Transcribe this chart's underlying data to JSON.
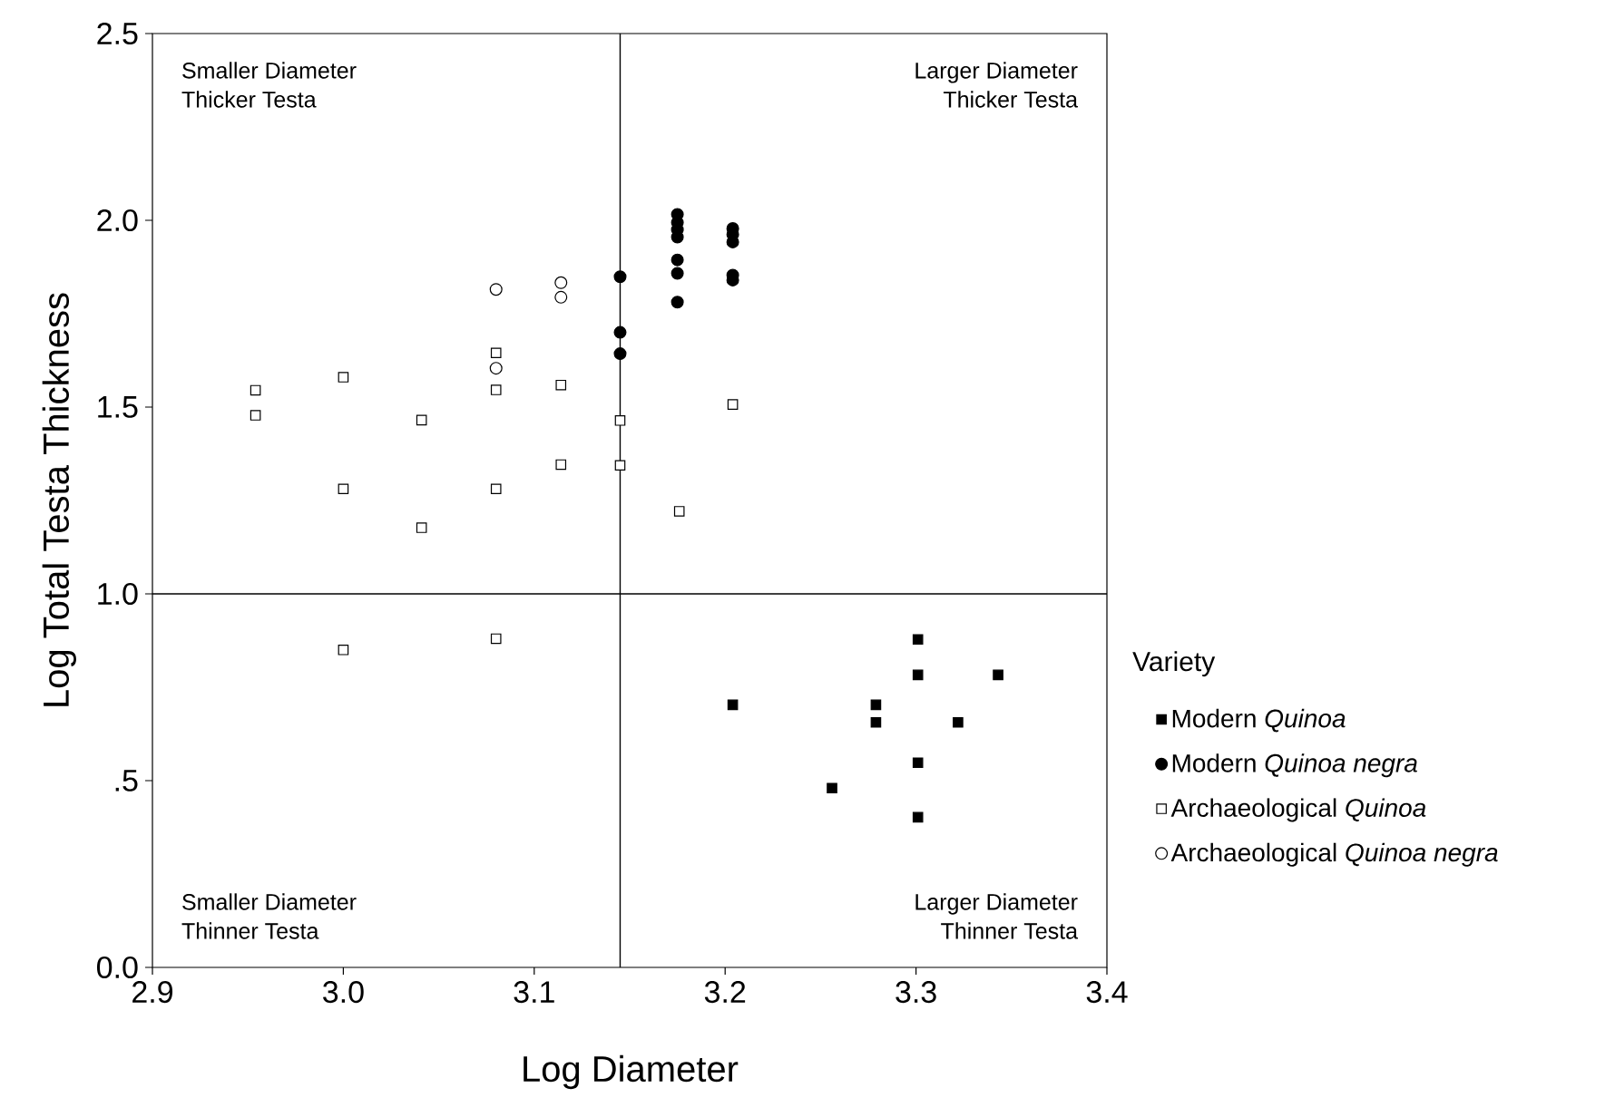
{
  "chart_data": {
    "type": "scatter",
    "xlabel": "Log Diameter",
    "ylabel": "Log Total Testa Thickness",
    "legend_title": "Variety",
    "xlim": [
      2.9,
      3.4
    ],
    "ylim": [
      0,
      2.5
    ],
    "xticks": [
      2.9,
      {
        "value": 3.0,
        "label": "3.0"
      },
      3.1,
      3.2,
      3.3,
      3.4
    ],
    "yticks": [
      {
        "value": 0,
        "label": "0.0"
      },
      {
        "value": 0.5,
        "label": ".5"
      },
      {
        "value": 1.0,
        "label": "1.0"
      },
      1.5,
      {
        "value": 2.0,
        "label": "2.0"
      },
      2.5
    ],
    "grid": false,
    "legend": "right",
    "ref_lines": [
      {
        "axis": "x",
        "value": 3.145,
        "color": "#000000"
      },
      {
        "axis": "y",
        "value": 1.0,
        "color": "#000000"
      }
    ],
    "annotations": [
      "Smaller Diameter",
      "Thicker Testa",
      "Larger Diameter",
      "Thicker Testa",
      "Smaller Diameter",
      "Thinner Testa",
      "Larger Diameter",
      "Thinner Testa"
    ],
    "series": [
      {
        "name": "Modern *Quinoa*",
        "color": "#000000",
        "marker": "square",
        "x": [
          3.301,
          3.301,
          3.343,
          3.204,
          3.279,
          3.279,
          3.322,
          3.301,
          3.256,
          3.301
        ],
        "values": [
          0.878,
          0.783,
          0.783,
          0.703,
          0.703,
          0.656,
          0.656,
          0.548,
          0.48,
          0.402
        ]
      },
      {
        "name": "Modern *Quinoa negra*",
        "color": "#000000",
        "marker": "circle",
        "x": [
          3.145,
          3.145,
          3.145,
          3.175,
          3.175,
          3.175,
          3.175,
          3.175,
          3.175,
          3.175,
          3.204,
          3.204,
          3.204,
          3.204,
          3.204
        ],
        "values": [
          1.849,
          1.7,
          1.643,
          2.016,
          1.994,
          1.975,
          1.955,
          1.894,
          1.858,
          1.781,
          1.978,
          1.962,
          1.942,
          1.853,
          1.84
        ]
      },
      {
        "name": "Archaeological *Quinoa*",
        "color": "#ffffff",
        "marker": "square",
        "x": [
          2.954,
          2.954,
          3.0,
          3.0,
          3.041,
          3.041,
          3.08,
          3.08,
          3.08,
          3.114,
          3.114,
          3.145,
          3.145,
          3.176,
          3.204,
          3.0,
          3.08
        ],
        "values": [
          1.545,
          1.478,
          1.58,
          1.281,
          1.465,
          1.177,
          1.645,
          1.546,
          1.281,
          1.559,
          1.346,
          1.464,
          1.344,
          1.221,
          1.507,
          0.85,
          0.88
        ]
      },
      {
        "name": "Archaeological *Quinoa negra*",
        "color": "#ffffff",
        "marker": "circle",
        "x": [
          3.08,
          3.08,
          3.114,
          3.114
        ],
        "values": [
          1.815,
          1.604,
          1.833,
          1.794
        ]
      }
    ]
  }
}
